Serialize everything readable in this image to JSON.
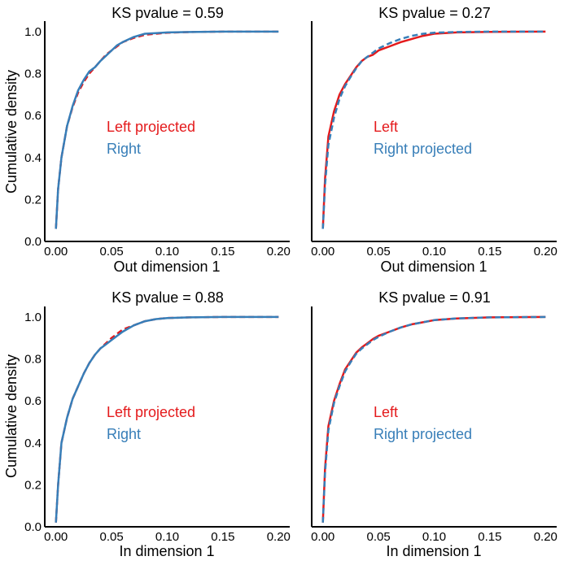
{
  "colors": {
    "red": "#e41a1c",
    "blue": "#377eb8",
    "axis": "#000000"
  },
  "chart_data": [
    {
      "type": "line",
      "title": "KS pvalue = 0.59",
      "xlabel": "Out dimension 1",
      "ylabel": "Cumulative density",
      "xlim": [
        -0.01,
        0.21
      ],
      "ylim": [
        0.0,
        1.05
      ],
      "xticks": [
        "0.00",
        "0.05",
        "0.10",
        "0.15",
        "0.20"
      ],
      "yticks": [
        "0.0",
        "0.2",
        "0.4",
        "0.6",
        "0.8",
        "1.0"
      ],
      "legend": [
        {
          "label": "Left projected",
          "color": "#e41a1c"
        },
        {
          "label": "Right",
          "color": "#377eb8"
        }
      ],
      "series": [
        {
          "name": "Left projected",
          "color": "#e41a1c",
          "style": "dashed",
          "x": [
            0.0,
            0.002,
            0.005,
            0.01,
            0.015,
            0.02,
            0.025,
            0.03,
            0.035,
            0.04,
            0.045,
            0.05,
            0.055,
            0.06,
            0.07,
            0.08,
            0.09,
            0.1,
            0.12,
            0.15,
            0.2
          ],
          "y": [
            0.06,
            0.25,
            0.4,
            0.55,
            0.64,
            0.71,
            0.76,
            0.8,
            0.83,
            0.86,
            0.89,
            0.91,
            0.93,
            0.95,
            0.97,
            0.985,
            0.99,
            0.995,
            0.998,
            1.0,
            1.0
          ]
        },
        {
          "name": "Right",
          "color": "#377eb8",
          "style": "solid",
          "x": [
            0.0,
            0.002,
            0.005,
            0.01,
            0.015,
            0.02,
            0.025,
            0.03,
            0.035,
            0.04,
            0.045,
            0.05,
            0.055,
            0.06,
            0.07,
            0.08,
            0.09,
            0.1,
            0.12,
            0.15,
            0.2
          ],
          "y": [
            0.06,
            0.25,
            0.4,
            0.55,
            0.645,
            0.72,
            0.77,
            0.81,
            0.83,
            0.86,
            0.885,
            0.91,
            0.935,
            0.95,
            0.975,
            0.99,
            0.993,
            0.996,
            0.998,
            1.0,
            1.0
          ]
        }
      ]
    },
    {
      "type": "line",
      "title": "KS pvalue = 0.27",
      "xlabel": "Out dimension 1",
      "ylabel": "",
      "xlim": [
        -0.01,
        0.21
      ],
      "ylim": [
        0.0,
        1.05
      ],
      "xticks": [
        "0.00",
        "0.05",
        "0.10",
        "0.15",
        "0.20"
      ],
      "yticks": [],
      "legend": [
        {
          "label": "Left",
          "color": "#e41a1c"
        },
        {
          "label": "Right projected",
          "color": "#377eb8"
        }
      ],
      "series": [
        {
          "name": "Left",
          "color": "#e41a1c",
          "style": "solid",
          "x": [
            0.0,
            0.002,
            0.005,
            0.01,
            0.015,
            0.02,
            0.025,
            0.03,
            0.035,
            0.04,
            0.045,
            0.05,
            0.06,
            0.07,
            0.08,
            0.09,
            0.1,
            0.12,
            0.15,
            0.2
          ],
          "y": [
            0.06,
            0.3,
            0.5,
            0.62,
            0.7,
            0.75,
            0.79,
            0.83,
            0.86,
            0.88,
            0.89,
            0.91,
            0.93,
            0.95,
            0.965,
            0.98,
            0.99,
            0.996,
            0.999,
            1.0
          ]
        },
        {
          "name": "Right projected",
          "color": "#377eb8",
          "style": "dashed",
          "x": [
            0.0,
            0.002,
            0.005,
            0.01,
            0.015,
            0.02,
            0.025,
            0.03,
            0.035,
            0.04,
            0.045,
            0.05,
            0.06,
            0.07,
            0.08,
            0.09,
            0.1,
            0.12,
            0.15,
            0.2
          ],
          "y": [
            0.06,
            0.27,
            0.46,
            0.59,
            0.68,
            0.74,
            0.785,
            0.825,
            0.86,
            0.88,
            0.9,
            0.92,
            0.945,
            0.965,
            0.98,
            0.99,
            0.995,
            0.998,
            1.0,
            1.0
          ]
        }
      ]
    },
    {
      "type": "line",
      "title": "KS pvalue = 0.88",
      "xlabel": "In dimension 1",
      "ylabel": "Cumulative density",
      "xlim": [
        -0.01,
        0.21
      ],
      "ylim": [
        0.0,
        1.05
      ],
      "xticks": [
        "0.00",
        "0.05",
        "0.10",
        "0.15",
        "0.20"
      ],
      "yticks": [
        "0.0",
        "0.2",
        "0.4",
        "0.6",
        "0.8",
        "1.0"
      ],
      "legend": [
        {
          "label": "Left projected",
          "color": "#e41a1c"
        },
        {
          "label": "Right",
          "color": "#377eb8"
        }
      ],
      "series": [
        {
          "name": "Left projected",
          "color": "#e41a1c",
          "style": "dashed",
          "x": [
            0.0,
            0.002,
            0.005,
            0.01,
            0.015,
            0.02,
            0.025,
            0.03,
            0.035,
            0.04,
            0.045,
            0.05,
            0.055,
            0.06,
            0.07,
            0.08,
            0.09,
            0.1,
            0.12,
            0.15,
            0.2
          ],
          "y": [
            0.02,
            0.2,
            0.4,
            0.52,
            0.61,
            0.67,
            0.73,
            0.78,
            0.82,
            0.85,
            0.875,
            0.9,
            0.92,
            0.94,
            0.96,
            0.98,
            0.99,
            0.995,
            0.998,
            1.0,
            1.0
          ]
        },
        {
          "name": "Right",
          "color": "#377eb8",
          "style": "solid",
          "x": [
            0.0,
            0.002,
            0.005,
            0.01,
            0.015,
            0.02,
            0.025,
            0.03,
            0.035,
            0.04,
            0.045,
            0.05,
            0.055,
            0.06,
            0.07,
            0.08,
            0.09,
            0.1,
            0.12,
            0.15,
            0.2
          ],
          "y": [
            0.02,
            0.2,
            0.4,
            0.52,
            0.61,
            0.67,
            0.73,
            0.78,
            0.82,
            0.85,
            0.87,
            0.89,
            0.91,
            0.93,
            0.96,
            0.98,
            0.99,
            0.995,
            0.998,
            1.0,
            1.0
          ]
        }
      ]
    },
    {
      "type": "line",
      "title": "KS pvalue = 0.91",
      "xlabel": "In dimension 1",
      "ylabel": "",
      "xlim": [
        -0.01,
        0.21
      ],
      "ylim": [
        0.0,
        1.05
      ],
      "xticks": [
        "0.00",
        "0.05",
        "0.10",
        "0.15",
        "0.20"
      ],
      "yticks": [],
      "legend": [
        {
          "label": "Left",
          "color": "#e41a1c"
        },
        {
          "label": "Right projected",
          "color": "#377eb8"
        }
      ],
      "series": [
        {
          "name": "Left",
          "color": "#e41a1c",
          "style": "solid",
          "x": [
            0.0,
            0.002,
            0.005,
            0.01,
            0.015,
            0.02,
            0.025,
            0.03,
            0.035,
            0.04,
            0.045,
            0.05,
            0.06,
            0.07,
            0.08,
            0.09,
            0.1,
            0.12,
            0.15,
            0.2
          ],
          "y": [
            0.02,
            0.28,
            0.48,
            0.6,
            0.68,
            0.75,
            0.79,
            0.83,
            0.855,
            0.875,
            0.895,
            0.91,
            0.93,
            0.95,
            0.965,
            0.975,
            0.985,
            0.993,
            0.998,
            1.0
          ]
        },
        {
          "name": "Right projected",
          "color": "#377eb8",
          "style": "dashed",
          "x": [
            0.0,
            0.002,
            0.005,
            0.01,
            0.015,
            0.02,
            0.025,
            0.03,
            0.035,
            0.04,
            0.045,
            0.05,
            0.06,
            0.07,
            0.08,
            0.09,
            0.1,
            0.12,
            0.15,
            0.2
          ],
          "y": [
            0.02,
            0.26,
            0.46,
            0.59,
            0.67,
            0.74,
            0.785,
            0.825,
            0.85,
            0.87,
            0.89,
            0.905,
            0.93,
            0.95,
            0.965,
            0.975,
            0.985,
            0.993,
            0.998,
            1.0
          ]
        }
      ]
    }
  ]
}
